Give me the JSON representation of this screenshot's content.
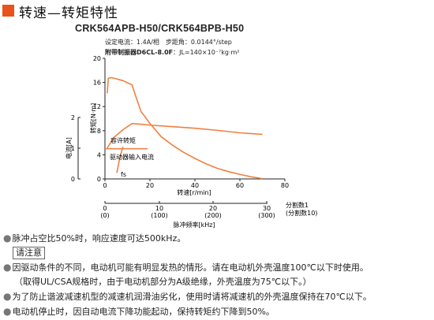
{
  "header": {
    "title": "转速—转矩特性",
    "model": "CRK564APB-H50/CRK564BPB-H50",
    "conditions_line1": "设定电流：1.4A/相　步距角：0.0144°/step",
    "conditions_line2_bold": "附带制振器D6CL-8.0F",
    "conditions_line2_rest": "：JL=140×10⁻⁷kg·m²"
  },
  "chart_data": {
    "type": "line",
    "x_axis": {
      "label": "转速[r/min]",
      "range": [
        0,
        80
      ],
      "ticks": [
        0,
        20,
        40,
        60,
        80
      ]
    },
    "y_axis_torque": {
      "label": "转矩[N·m]",
      "range": [
        0,
        20
      ],
      "ticks": [
        0,
        4,
        8,
        12,
        16,
        20
      ]
    },
    "y_axis_current": {
      "label": "电流[A]",
      "range": [
        0,
        2
      ],
      "ticks": [
        0,
        1,
        2
      ]
    },
    "secondary_axis": {
      "label": "脉冲频率[kHz]",
      "unit_label_1": "分割数1",
      "unit_label_2": "(分割数10)",
      "ticks": [
        "0",
        "10",
        "20",
        "30"
      ],
      "ticks_paren": [
        "(0)",
        "(100)",
        "(200)",
        "(300)"
      ]
    },
    "series": [
      {
        "name": "转矩",
        "color": "#f08040",
        "x": [
          1,
          1.5,
          3,
          5,
          8,
          12,
          16,
          20,
          25,
          30,
          35,
          40,
          45,
          50,
          55,
          60,
          65,
          70
        ],
        "y": [
          14.2,
          16.7,
          16.8,
          16.6,
          16.3,
          15.6,
          11.2,
          9.2,
          7.0,
          5.6,
          4.4,
          3.4,
          2.5,
          1.75,
          1.2,
          0.75,
          0.35,
          0.05
        ]
      },
      {
        "name": "驱动器输入电流",
        "color": "#f08040",
        "x": [
          1,
          4,
          8,
          12,
          16,
          20,
          30,
          40,
          50,
          60,
          70
        ],
        "y": [
          1.0,
          1.35,
          1.6,
          1.8,
          1.78,
          1.75,
          1.7,
          1.65,
          1.58,
          1.5,
          1.45
        ]
      },
      {
        "name": "fs",
        "color": "#f08040",
        "x": [
          5.3,
          6.5,
          8
        ],
        "y": [
          0.2,
          0.65,
          1.05
        ]
      }
    ],
    "allowable_torque": {
      "label": "容许转矩",
      "value": 5.0,
      "x_range": [
        0,
        19
      ],
      "color": "#f08040"
    },
    "current_label": "驱动器输入电流",
    "fs_label": "fs",
    "grid": false
  },
  "notes": {
    "line1": "脉冲占空比50%时，响应速度可达500kHz。",
    "caution_label": "请注意",
    "line2": "因驱动条件的不同，电动机可能有明显发热的情形。请在电动机外壳温度100℃以下时使用。",
    "line3": "（取得UL/CSA规格时，由于电动机部分为A级绝缘，外壳温度为75℃以下。）",
    "line4": "为了防止谐波减速机型的减速机润滑油劣化，使用时请将减速机的外壳温度保持在70℃以下。",
    "line5": "电动机停止时，因自动电流下降功能起动，保持转矩约下降到50%。"
  }
}
